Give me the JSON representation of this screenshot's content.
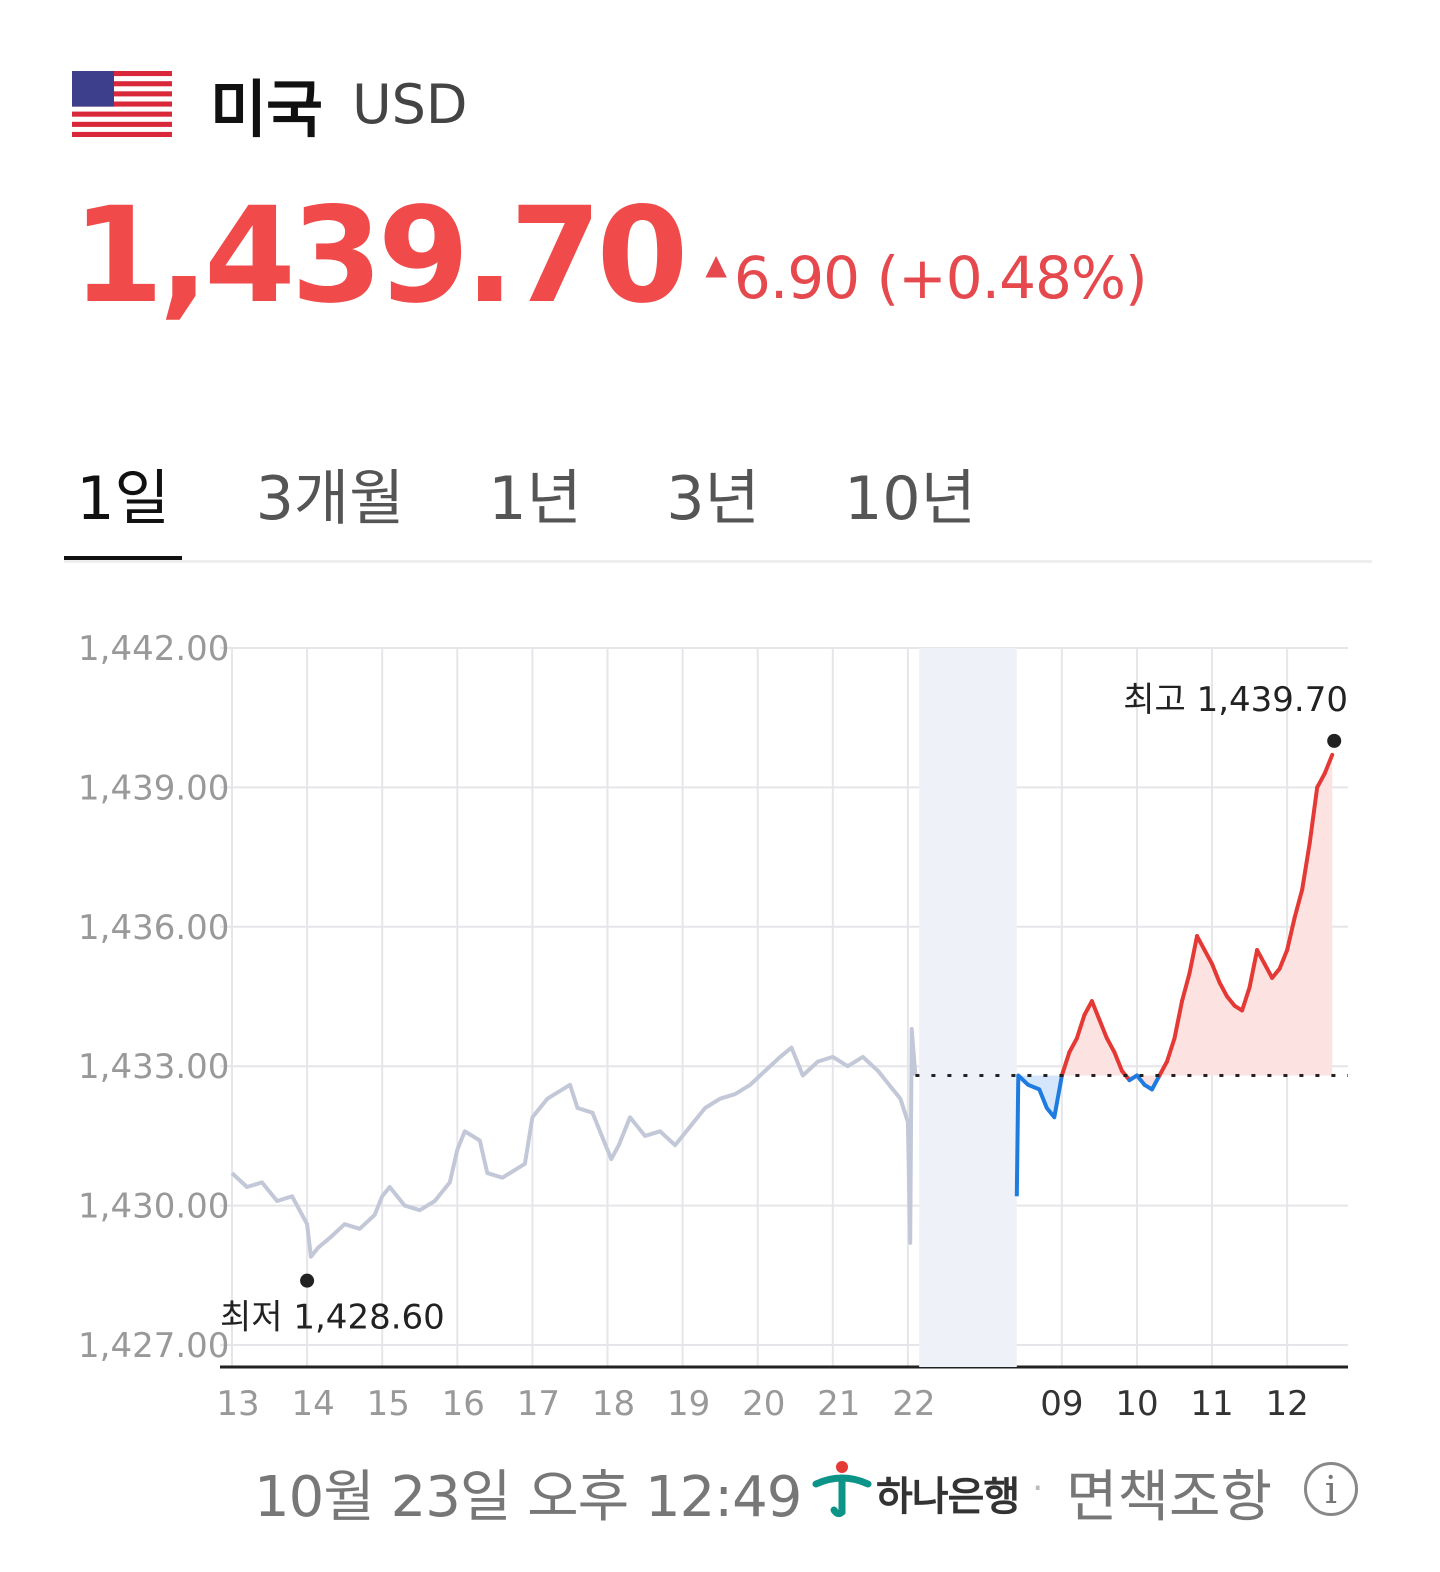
{
  "header": {
    "country": "미국",
    "currency": "USD",
    "flag_icon": "us-flag-icon"
  },
  "quote": {
    "price": "1,439.70",
    "change_arrow": "▲",
    "change_text": "6.90 (+0.48%)",
    "color": "#f04a4a"
  },
  "tabs": [
    {
      "label": "1일",
      "active": true
    },
    {
      "label": "3개월",
      "active": false
    },
    {
      "label": "1년",
      "active": false
    },
    {
      "label": "3년",
      "active": false
    },
    {
      "label": "10년",
      "active": false
    }
  ],
  "chart_data": {
    "type": "line",
    "y_ticks": [
      "1,442.00",
      "1,439.00",
      "1,436.00",
      "1,433.00",
      "1,430.00",
      "1,427.00"
    ],
    "ylim": [
      1427,
      1442
    ],
    "x_labels_prev_day": [
      "13",
      "14",
      "15",
      "16",
      "17",
      "18",
      "19",
      "20",
      "21",
      "22"
    ],
    "night_icon": "moon-icon",
    "x_labels_today": [
      "09",
      "10",
      "11",
      "12"
    ],
    "baseline": 1432.8,
    "low": {
      "label": "최저 1,428.60",
      "value": 1428.6
    },
    "high": {
      "label": "최고 1,439.70",
      "value": 1439.7
    },
    "colors": {
      "prev": "#c3c8d8",
      "up": "#e53935",
      "down": "#1e7be0",
      "up_fill": "#fde2e2",
      "down_fill": "#d3e6fb",
      "night_shade": "#eef1f8"
    },
    "series": [
      {
        "segment": "prev",
        "points": [
          [
            13.0,
            1430.7
          ],
          [
            13.2,
            1430.4
          ],
          [
            13.4,
            1430.5
          ],
          [
            13.6,
            1430.1
          ],
          [
            13.8,
            1430.2
          ],
          [
            14.0,
            1429.6
          ],
          [
            14.05,
            1428.9
          ],
          [
            14.15,
            1429.1
          ],
          [
            14.3,
            1429.3
          ],
          [
            14.5,
            1429.6
          ],
          [
            14.7,
            1429.5
          ],
          [
            14.9,
            1429.8
          ],
          [
            15.0,
            1430.2
          ],
          [
            15.1,
            1430.4
          ],
          [
            15.3,
            1430.0
          ],
          [
            15.5,
            1429.9
          ],
          [
            15.7,
            1430.1
          ],
          [
            15.9,
            1430.5
          ],
          [
            16.0,
            1431.2
          ],
          [
            16.1,
            1431.6
          ],
          [
            16.3,
            1431.4
          ],
          [
            16.4,
            1430.7
          ],
          [
            16.6,
            1430.6
          ],
          [
            16.9,
            1430.9
          ],
          [
            17.0,
            1431.9
          ],
          [
            17.2,
            1432.3
          ],
          [
            17.5,
            1432.6
          ],
          [
            17.6,
            1432.1
          ],
          [
            17.8,
            1432.0
          ],
          [
            17.95,
            1431.4
          ],
          [
            18.05,
            1431.0
          ],
          [
            18.15,
            1431.3
          ],
          [
            18.3,
            1431.9
          ],
          [
            18.5,
            1431.5
          ],
          [
            18.7,
            1431.6
          ],
          [
            18.9,
            1431.3
          ],
          [
            19.1,
            1431.7
          ],
          [
            19.3,
            1432.1
          ],
          [
            19.5,
            1432.3
          ],
          [
            19.7,
            1432.4
          ],
          [
            19.9,
            1432.6
          ],
          [
            20.1,
            1432.9
          ],
          [
            20.3,
            1433.2
          ],
          [
            20.45,
            1433.4
          ],
          [
            20.6,
            1432.8
          ],
          [
            20.8,
            1433.1
          ],
          [
            21.0,
            1433.2
          ],
          [
            21.2,
            1433.0
          ],
          [
            21.4,
            1433.2
          ],
          [
            21.6,
            1432.9
          ],
          [
            21.75,
            1432.6
          ],
          [
            21.9,
            1432.3
          ],
          [
            22.0,
            1431.8
          ],
          [
            22.03,
            1429.2
          ],
          [
            22.05,
            1433.8
          ],
          [
            22.1,
            1432.8
          ]
        ]
      },
      {
        "segment": "night_open",
        "points": [
          [
            23.45,
            1430.2
          ],
          [
            23.47,
            1432.8
          ],
          [
            23.6,
            1432.6
          ],
          [
            23.75,
            1432.5
          ],
          [
            23.85,
            1432.1
          ],
          [
            23.95,
            1431.9
          ],
          [
            24.05,
            1432.8
          ]
        ]
      },
      {
        "segment": "today",
        "points": [
          [
            24.05,
            1432.8
          ],
          [
            24.15,
            1433.3
          ],
          [
            24.25,
            1433.6
          ],
          [
            24.35,
            1434.1
          ],
          [
            24.45,
            1434.4
          ],
          [
            24.55,
            1434.0
          ],
          [
            24.65,
            1433.6
          ],
          [
            24.75,
            1433.3
          ],
          [
            24.85,
            1432.9
          ],
          [
            24.95,
            1432.7
          ],
          [
            25.05,
            1432.8
          ],
          [
            25.15,
            1432.6
          ],
          [
            25.25,
            1432.5
          ],
          [
            25.35,
            1432.8
          ],
          [
            25.45,
            1433.1
          ],
          [
            25.55,
            1433.6
          ],
          [
            25.65,
            1434.4
          ],
          [
            25.75,
            1435.0
          ],
          [
            25.85,
            1435.8
          ],
          [
            25.95,
            1435.5
          ],
          [
            26.05,
            1435.2
          ],
          [
            26.15,
            1434.8
          ],
          [
            26.25,
            1434.5
          ],
          [
            26.35,
            1434.3
          ],
          [
            26.45,
            1434.2
          ],
          [
            26.55,
            1434.7
          ],
          [
            26.65,
            1435.5
          ],
          [
            26.75,
            1435.2
          ],
          [
            26.85,
            1434.9
          ],
          [
            26.95,
            1435.1
          ],
          [
            27.05,
            1435.5
          ],
          [
            27.15,
            1436.2
          ],
          [
            27.25,
            1436.8
          ],
          [
            27.35,
            1437.8
          ],
          [
            27.45,
            1439.0
          ],
          [
            27.55,
            1439.3
          ],
          [
            27.65,
            1439.7
          ]
        ]
      }
    ]
  },
  "footer": {
    "timestamp": "10월 23일 오후 12:49",
    "bank": "하나은행",
    "separator": "·",
    "disclaimer": "면책조항",
    "info_icon": "i"
  }
}
